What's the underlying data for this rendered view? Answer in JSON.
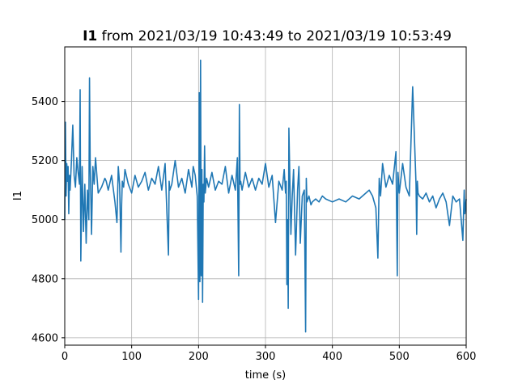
{
  "chart_data": {
    "type": "line",
    "title_bold": "I1",
    "title_rest": " from 2021/03/19 10:43:49 to 2021/03/19 10:53:49",
    "xlabel": "time (s)",
    "ylabel": "I1",
    "xlim": [
      0,
      600
    ],
    "ylim": [
      4575,
      5585
    ],
    "xticks": [
      0,
      100,
      200,
      300,
      400,
      500,
      600
    ],
    "yticks": [
      4600,
      4800,
      5000,
      5200,
      5400
    ],
    "grid": true,
    "line_color": "#1f77b4",
    "series": [
      {
        "values_note": "",
        "x": [
          0,
          1,
          2,
          3,
          4,
          5,
          6,
          7,
          8,
          10,
          12,
          14,
          16,
          18,
          20,
          22,
          23,
          24,
          26,
          28,
          30,
          32,
          34,
          36,
          37,
          38,
          40,
          42,
          44,
          46,
          48,
          50,
          55,
          60,
          62,
          65,
          70,
          75,
          78,
          80,
          82,
          84,
          85,
          86,
          88,
          90,
          95,
          100,
          105,
          110,
          115,
          120,
          125,
          130,
          135,
          140,
          145,
          150,
          155,
          156,
          157,
          160,
          165,
          170,
          175,
          180,
          185,
          190,
          192,
          195,
          198,
          200,
          201,
          202,
          203,
          204,
          205,
          206,
          207,
          208,
          209,
          210,
          212,
          215,
          220,
          225,
          230,
          235,
          240,
          245,
          250,
          255,
          258,
          260,
          261,
          262,
          263,
          265,
          270,
          275,
          280,
          285,
          290,
          295,
          300,
          305,
          310,
          315,
          320,
          325,
          328,
          330,
          331,
          332,
          333,
          334,
          335,
          338,
          340,
          342,
          345,
          348,
          350,
          352,
          355,
          358,
          360,
          361,
          362,
          365,
          368,
          370,
          375,
          380,
          385,
          390,
          400,
          410,
          420,
          430,
          440,
          450,
          455,
          460,
          465,
          468,
          470,
          472,
          475,
          480,
          485,
          490,
          495,
          497,
          498,
          500,
          505,
          510,
          515,
          520,
          525,
          526,
          527,
          528,
          530,
          535,
          540,
          545,
          550,
          555,
          560,
          565,
          570,
          575,
          580,
          585,
          590,
          595,
          597,
          598,
          600
        ],
        "y": [
          5000,
          5330,
          5080,
          5190,
          5130,
          5180,
          5020,
          5150,
          5100,
          5200,
          5320,
          5150,
          5110,
          5210,
          5160,
          5120,
          5440,
          4860,
          5180,
          4960,
          5120,
          4920,
          5100,
          5000,
          5480,
          5200,
          4950,
          5180,
          5120,
          5210,
          5150,
          5090,
          5110,
          5140,
          5130,
          5100,
          5150,
          5060,
          4990,
          5180,
          5120,
          4890,
          5050,
          5130,
          5110,
          5170,
          5120,
          5090,
          5150,
          5110,
          5130,
          5160,
          5100,
          5140,
          5120,
          5180,
          5100,
          5190,
          4880,
          5130,
          5100,
          5120,
          5200,
          5110,
          5140,
          5090,
          5170,
          5110,
          5180,
          5150,
          5080,
          4730,
          5430,
          4790,
          5540,
          4810,
          5170,
          4720,
          5120,
          5060,
          5250,
          5090,
          5140,
          5110,
          5160,
          5100,
          5130,
          5120,
          5180,
          5090,
          5150,
          5100,
          5210,
          4810,
          5390,
          5120,
          5130,
          5100,
          5160,
          5110,
          5140,
          5100,
          5140,
          5120,
          5190,
          5110,
          5150,
          4990,
          5130,
          5100,
          5170,
          5090,
          5130,
          4780,
          5000,
          4700,
          5310,
          4950,
          5080,
          5170,
          4880,
          5100,
          5180,
          4920,
          5080,
          5100,
          4620,
          5140,
          5060,
          5080,
          5050,
          5060,
          5070,
          5060,
          5080,
          5070,
          5060,
          5070,
          5060,
          5080,
          5070,
          5090,
          5100,
          5080,
          5040,
          4870,
          5140,
          5080,
          5190,
          5110,
          5150,
          5120,
          5230,
          4810,
          5160,
          5090,
          5190,
          5110,
          5080,
          5450,
          5120,
          4950,
          5130,
          5090,
          5080,
          5070,
          5090,
          5060,
          5080,
          5040,
          5070,
          5090,
          5060,
          4980,
          5080,
          5060,
          5070,
          4930,
          5100,
          5020,
          5070
        ]
      }
    ]
  }
}
